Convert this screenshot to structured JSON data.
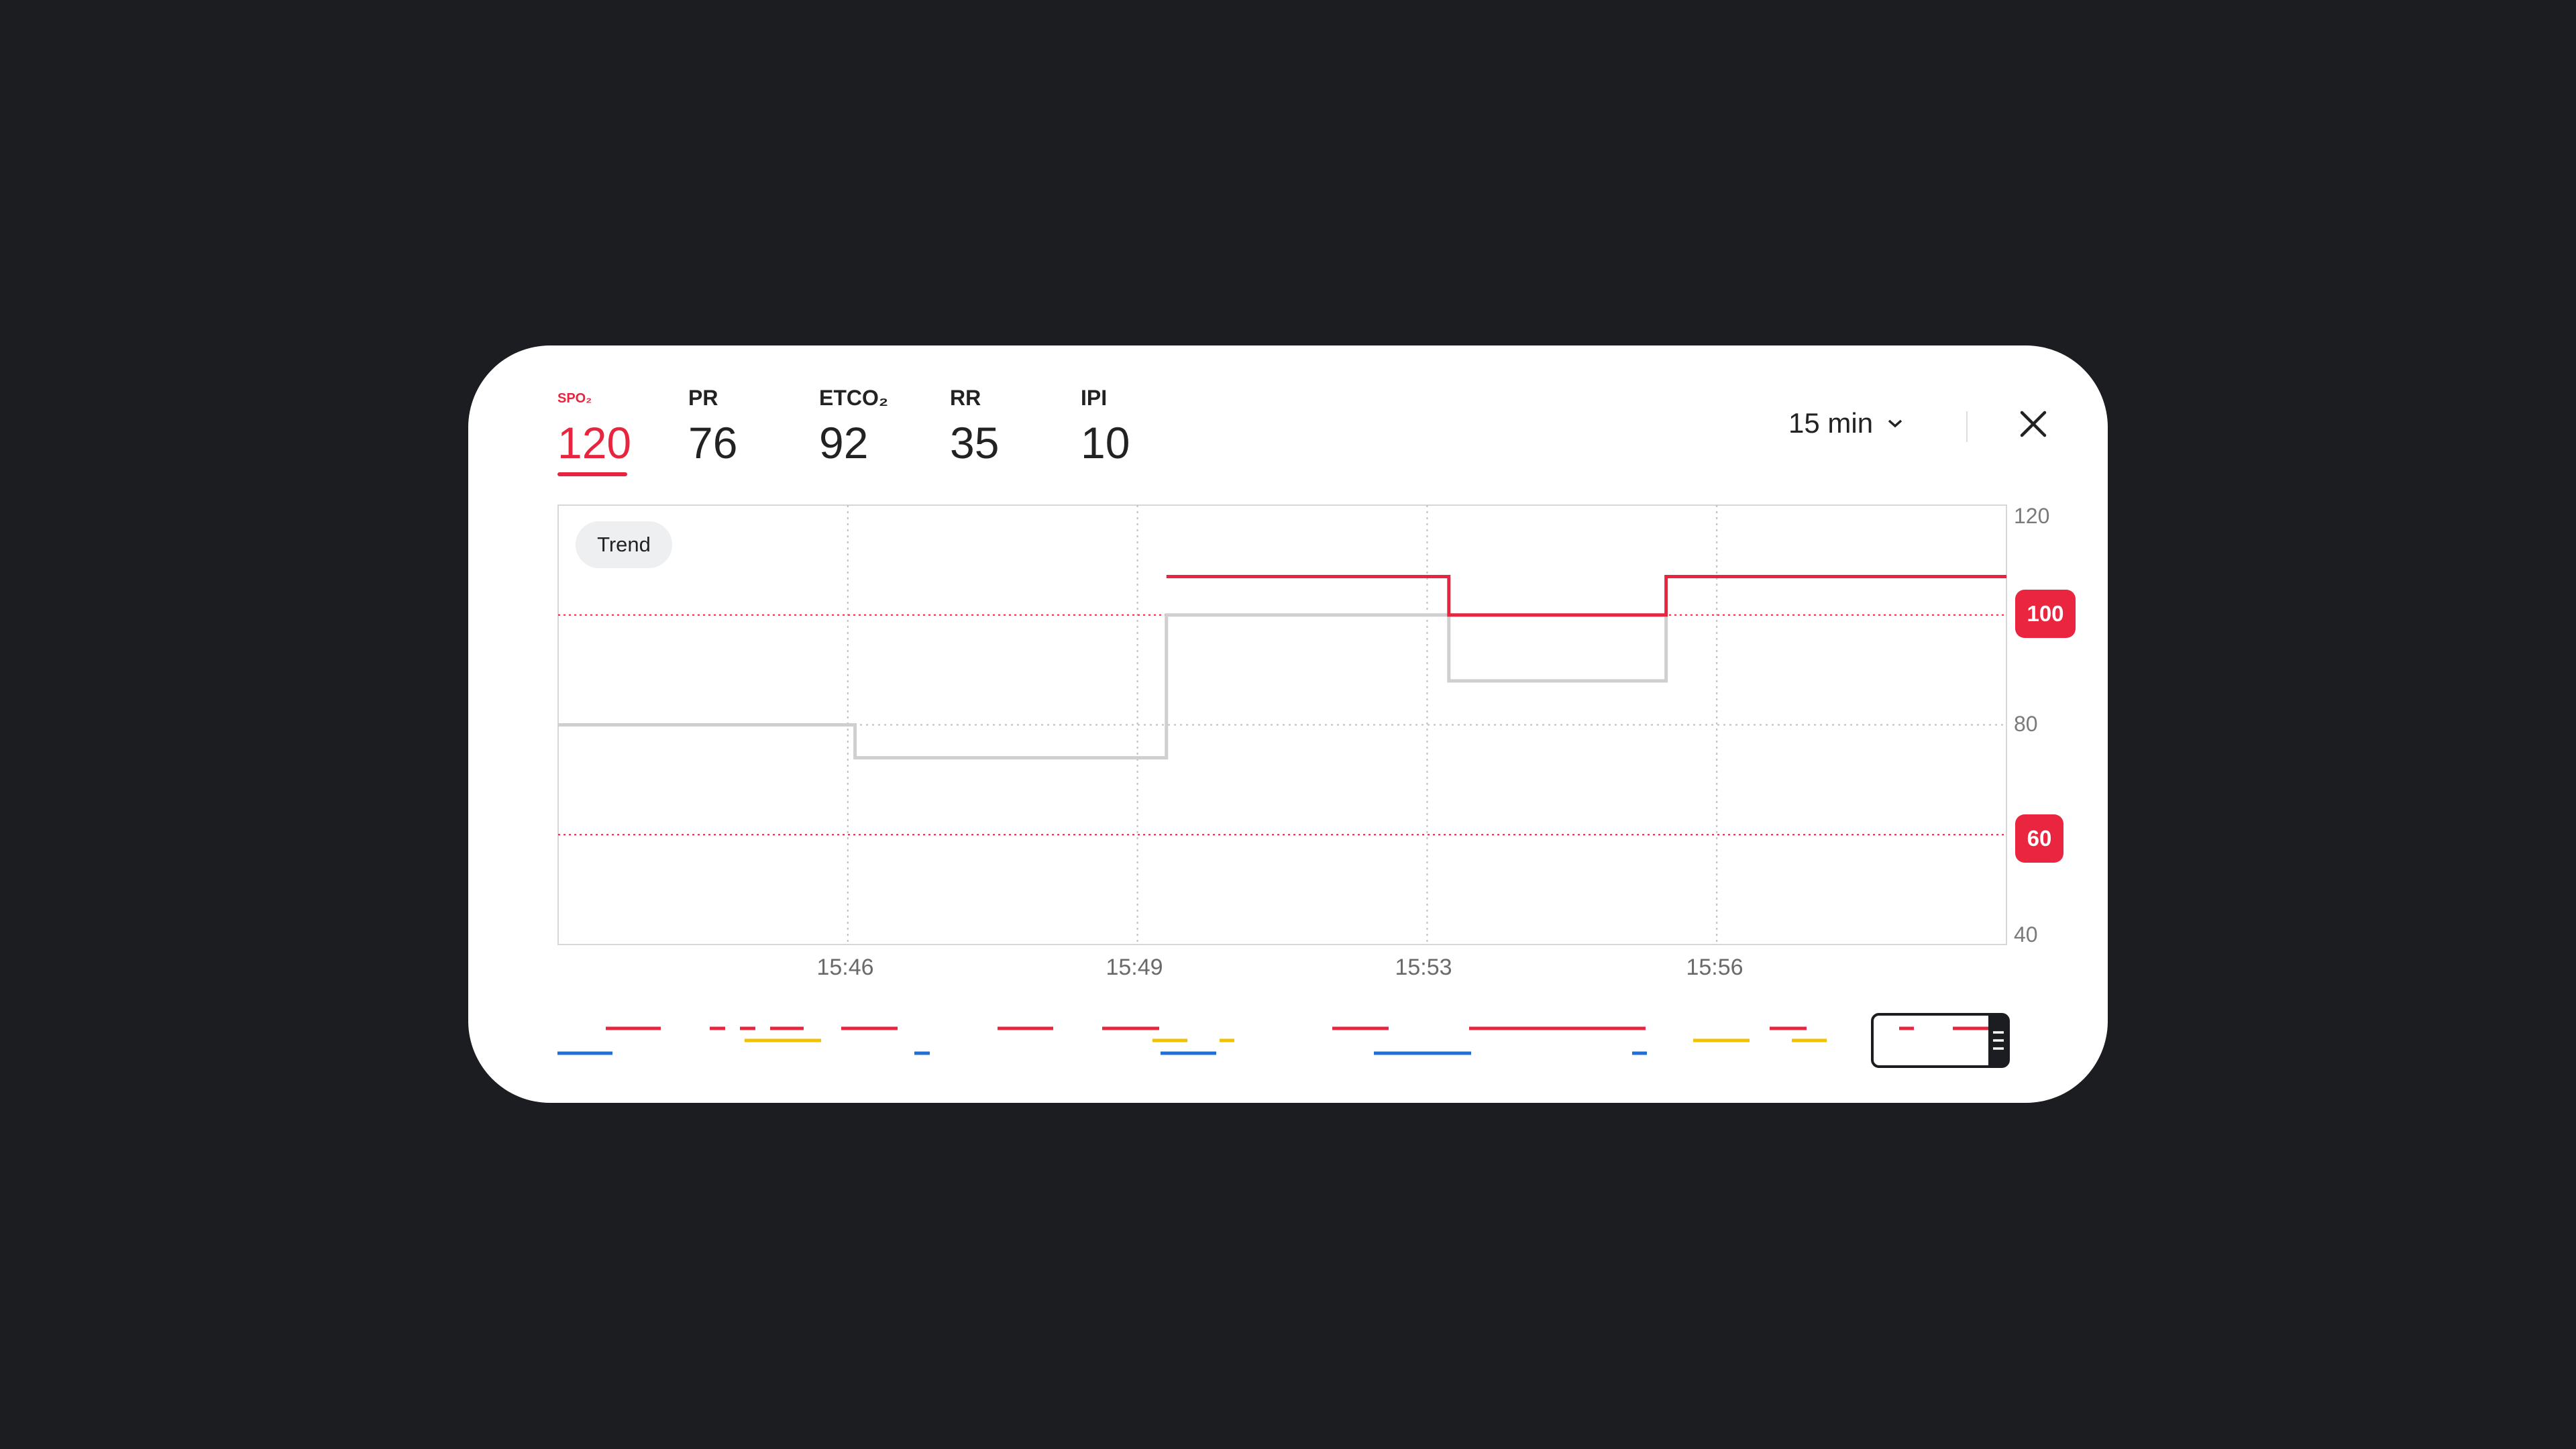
{
  "tabs": [
    {
      "label": "SPO₂",
      "value": "120",
      "active": true
    },
    {
      "label": "PR",
      "value": "76",
      "active": false
    },
    {
      "label": "ETCO₂",
      "value": "92",
      "active": false
    },
    {
      "label": "RR",
      "value": "35",
      "active": false
    },
    {
      "label": "IPI",
      "value": "10",
      "active": false
    }
  ],
  "time_range": {
    "label": "15 min",
    "icon": "chevron-down-icon"
  },
  "close": {
    "icon": "close-icon"
  },
  "trend_label": "Trend",
  "colors": {
    "accent_red": "#e8253f",
    "gray_line": "#cfcfcf",
    "blue": "#1f6fd6",
    "yellow": "#f2c200"
  },
  "chart_data": {
    "type": "line",
    "title": "",
    "xlabel": "",
    "ylabel": "",
    "ylim": [
      40,
      120
    ],
    "y_ticks": [
      "120",
      "100",
      "80",
      "60",
      "40"
    ],
    "x_ticks": [
      "15:46",
      "15:49",
      "15:53",
      "15:56"
    ],
    "thresholds": [
      {
        "value": 100,
        "label": "100"
      },
      {
        "value": 60,
        "label": "60"
      }
    ],
    "grid": true,
    "series": [
      {
        "color": "#e8253f",
        "style": "step",
        "points": [
          [
            0.42,
            null
          ],
          [
            0.42,
            107
          ],
          [
            0.615,
            107
          ],
          [
            0.615,
            100
          ],
          [
            0.765,
            100
          ],
          [
            0.765,
            107
          ],
          [
            1.0,
            107
          ]
        ]
      },
      {
        "color": "#cfcfcf",
        "style": "step",
        "points": [
          [
            0,
            80
          ],
          [
            0.205,
            80
          ],
          [
            0.205,
            74
          ],
          [
            0.42,
            74
          ],
          [
            0.42,
            100
          ],
          [
            0.615,
            100
          ],
          [
            0.615,
            88
          ],
          [
            0.765,
            88
          ],
          [
            0.765,
            100
          ]
        ]
      }
    ]
  }
}
